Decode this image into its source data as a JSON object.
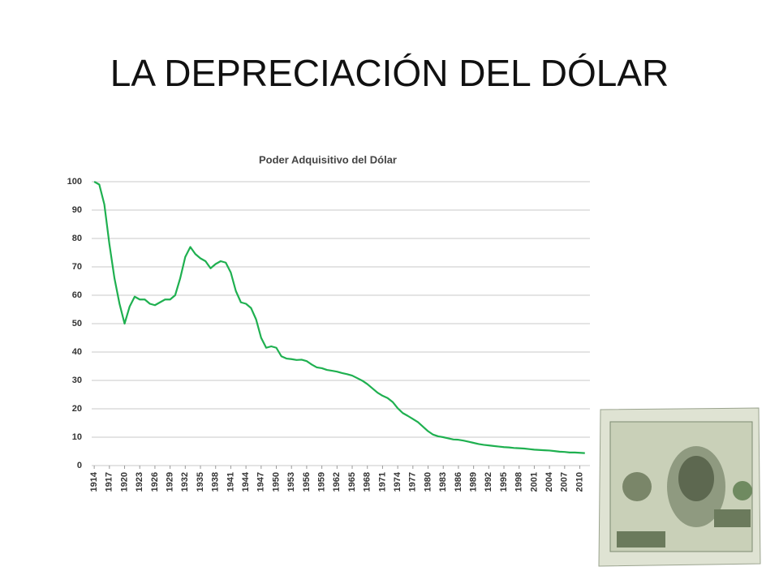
{
  "title": "LA DEPRECIACIÓN DEL DÓLAR",
  "chart_data": {
    "type": "line",
    "title": "Poder Adquisitivo del Dólar",
    "color": "#1fb050",
    "grid": true,
    "x": [
      1914,
      1915,
      1916,
      1917,
      1918,
      1919,
      1920,
      1921,
      1922,
      1923,
      1924,
      1925,
      1926,
      1927,
      1928,
      1929,
      1930,
      1931,
      1932,
      1933,
      1934,
      1935,
      1936,
      1937,
      1938,
      1939,
      1940,
      1941,
      1942,
      1943,
      1944,
      1945,
      1946,
      1947,
      1948,
      1949,
      1950,
      1951,
      1952,
      1953,
      1954,
      1955,
      1956,
      1957,
      1958,
      1959,
      1960,
      1961,
      1962,
      1963,
      1964,
      1965,
      1966,
      1967,
      1968,
      1969,
      1970,
      1971,
      1972,
      1973,
      1974,
      1975,
      1976,
      1977,
      1978,
      1979,
      1980,
      1981,
      1982,
      1983,
      1984,
      1985,
      1986,
      1987,
      1988,
      1989,
      1990,
      1991,
      1992,
      1993,
      1994,
      1995,
      1996,
      1997,
      1998,
      1999,
      2000,
      2001,
      2002,
      2003,
      2004,
      2005,
      2006,
      2007,
      2008,
      2009,
      2010,
      2011
    ],
    "values": [
      100,
      99,
      92,
      78,
      66,
      57,
      50,
      56,
      59.5,
      58.5,
      58.5,
      57,
      56.5,
      57.5,
      58.5,
      58.5,
      60,
      66,
      73.5,
      77,
      74.5,
      73,
      72,
      69.5,
      71,
      72,
      71.5,
      68,
      61.5,
      57.5,
      57,
      55.5,
      51.5,
      45,
      41.5,
      42,
      41.5,
      38.5,
      37.7,
      37.5,
      37.2,
      37.3,
      36.8,
      35.6,
      34.6,
      34.3,
      33.7,
      33.4,
      33.1,
      32.6,
      32.2,
      31.7,
      30.8,
      29.9,
      28.7,
      27.2,
      25.7,
      24.6,
      23.8,
      22.4,
      20.2,
      18.5,
      17.5,
      16.4,
      15.3,
      13.7,
      12.1,
      10.9,
      10.3,
      10,
      9.6,
      9.2,
      9.1,
      8.8,
      8.4,
      8,
      7.6,
      7.3,
      7.1,
      6.9,
      6.7,
      6.5,
      6.4,
      6.2,
      6.1,
      6,
      5.8,
      5.6,
      5.5,
      5.4,
      5.3,
      5.1,
      4.9,
      4.8,
      4.6,
      4.6,
      4.5,
      4.4
    ],
    "xlim": [
      1913.5,
      2012
    ],
    "xticks": [
      1914,
      1917,
      1920,
      1923,
      1926,
      1929,
      1932,
      1935,
      1938,
      1941,
      1944,
      1947,
      1950,
      1953,
      1956,
      1959,
      1962,
      1965,
      1968,
      1971,
      1974,
      1977,
      1980,
      1983,
      1986,
      1989,
      1992,
      1995,
      1998,
      2001,
      2004,
      2007,
      2010
    ],
    "ylim": [
      0,
      100
    ],
    "yticks": [
      0,
      10,
      20,
      30,
      40,
      50,
      60,
      70,
      80,
      90,
      100
    ]
  }
}
